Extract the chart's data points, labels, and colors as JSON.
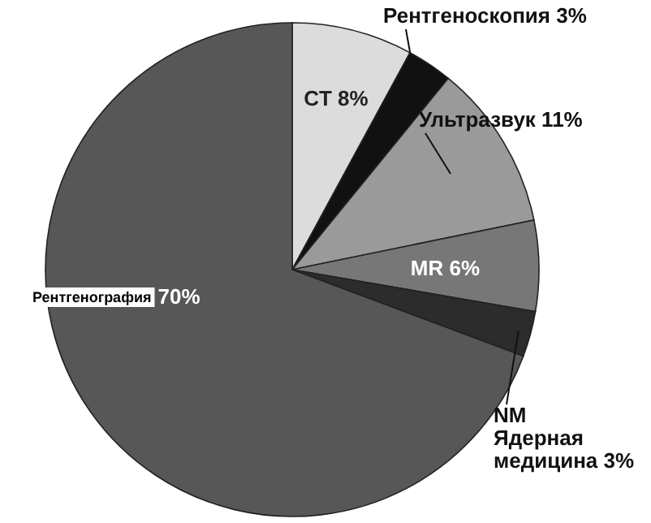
{
  "chart_data": {
    "type": "pie",
    "categories": [
      "CT",
      "Рентгеноскопия",
      "Ультразвук",
      "MR",
      "NM Ядерная медицина",
      "Рентгенография"
    ],
    "values": [
      8,
      3,
      11,
      6,
      3,
      70
    ],
    "value_labels": [
      "8%",
      "3%",
      "11%",
      "6%",
      "3%",
      "70%"
    ],
    "colors": [
      "#dcdcdc",
      "#111111",
      "#9a9a9a",
      "#777777",
      "#2c2c2c",
      "#575757"
    ]
  }
}
